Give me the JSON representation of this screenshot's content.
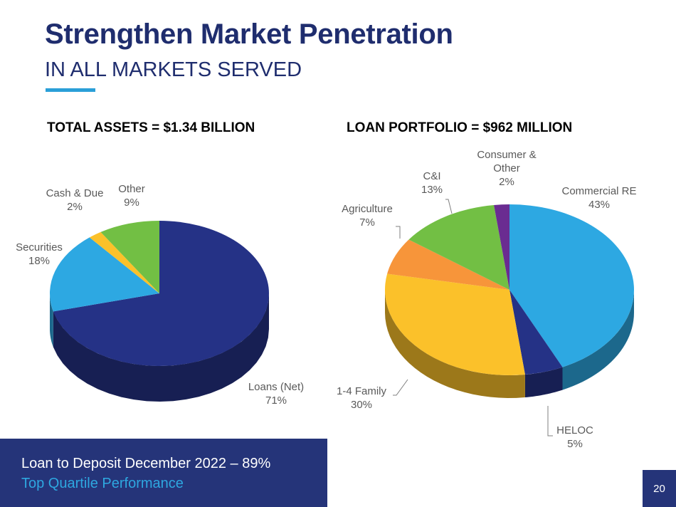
{
  "header": {
    "title": "Strengthen Market Penetration",
    "subtitle": "IN ALL MARKETS SERVED"
  },
  "chart_data": [
    {
      "type": "pie",
      "title": "TOTAL ASSETS = $1.34 BILLION",
      "slices": [
        {
          "name": "Loans (Net)",
          "value": 71,
          "label": "71%",
          "color": "#253286"
        },
        {
          "name": "Securities",
          "value": 18,
          "label": "18%",
          "color": "#2da8e2"
        },
        {
          "name": "Cash & Due",
          "value": 2,
          "label": "2%",
          "color": "#fbc12a"
        },
        {
          "name": "Other",
          "value": 9,
          "label": "9%",
          "color": "#72bf44"
        }
      ]
    },
    {
      "type": "pie",
      "title": "LOAN PORTFOLIO = $962 MILLION",
      "slices": [
        {
          "name": "Commercial RE",
          "value": 43,
          "label": "43%",
          "color": "#2da8e2"
        },
        {
          "name": "HELOC",
          "value": 5,
          "label": "5%",
          "color": "#253286"
        },
        {
          "name": "1-4 Family",
          "value": 30,
          "label": "30%",
          "color": "#fbc12a"
        },
        {
          "name": "Agriculture",
          "value": 7,
          "label": "7%",
          "color": "#f7953a"
        },
        {
          "name": "C&I",
          "value": 13,
          "label": "13%",
          "color": "#72bf44"
        },
        {
          "name": "Consumer & Other",
          "value": 2,
          "label": "2%",
          "color": "#6a2c91"
        }
      ]
    }
  ],
  "footer": {
    "line1": "Loan to Deposit December 2022 – 89%",
    "line2": "Top Quartile Performance"
  },
  "page_number": "20"
}
